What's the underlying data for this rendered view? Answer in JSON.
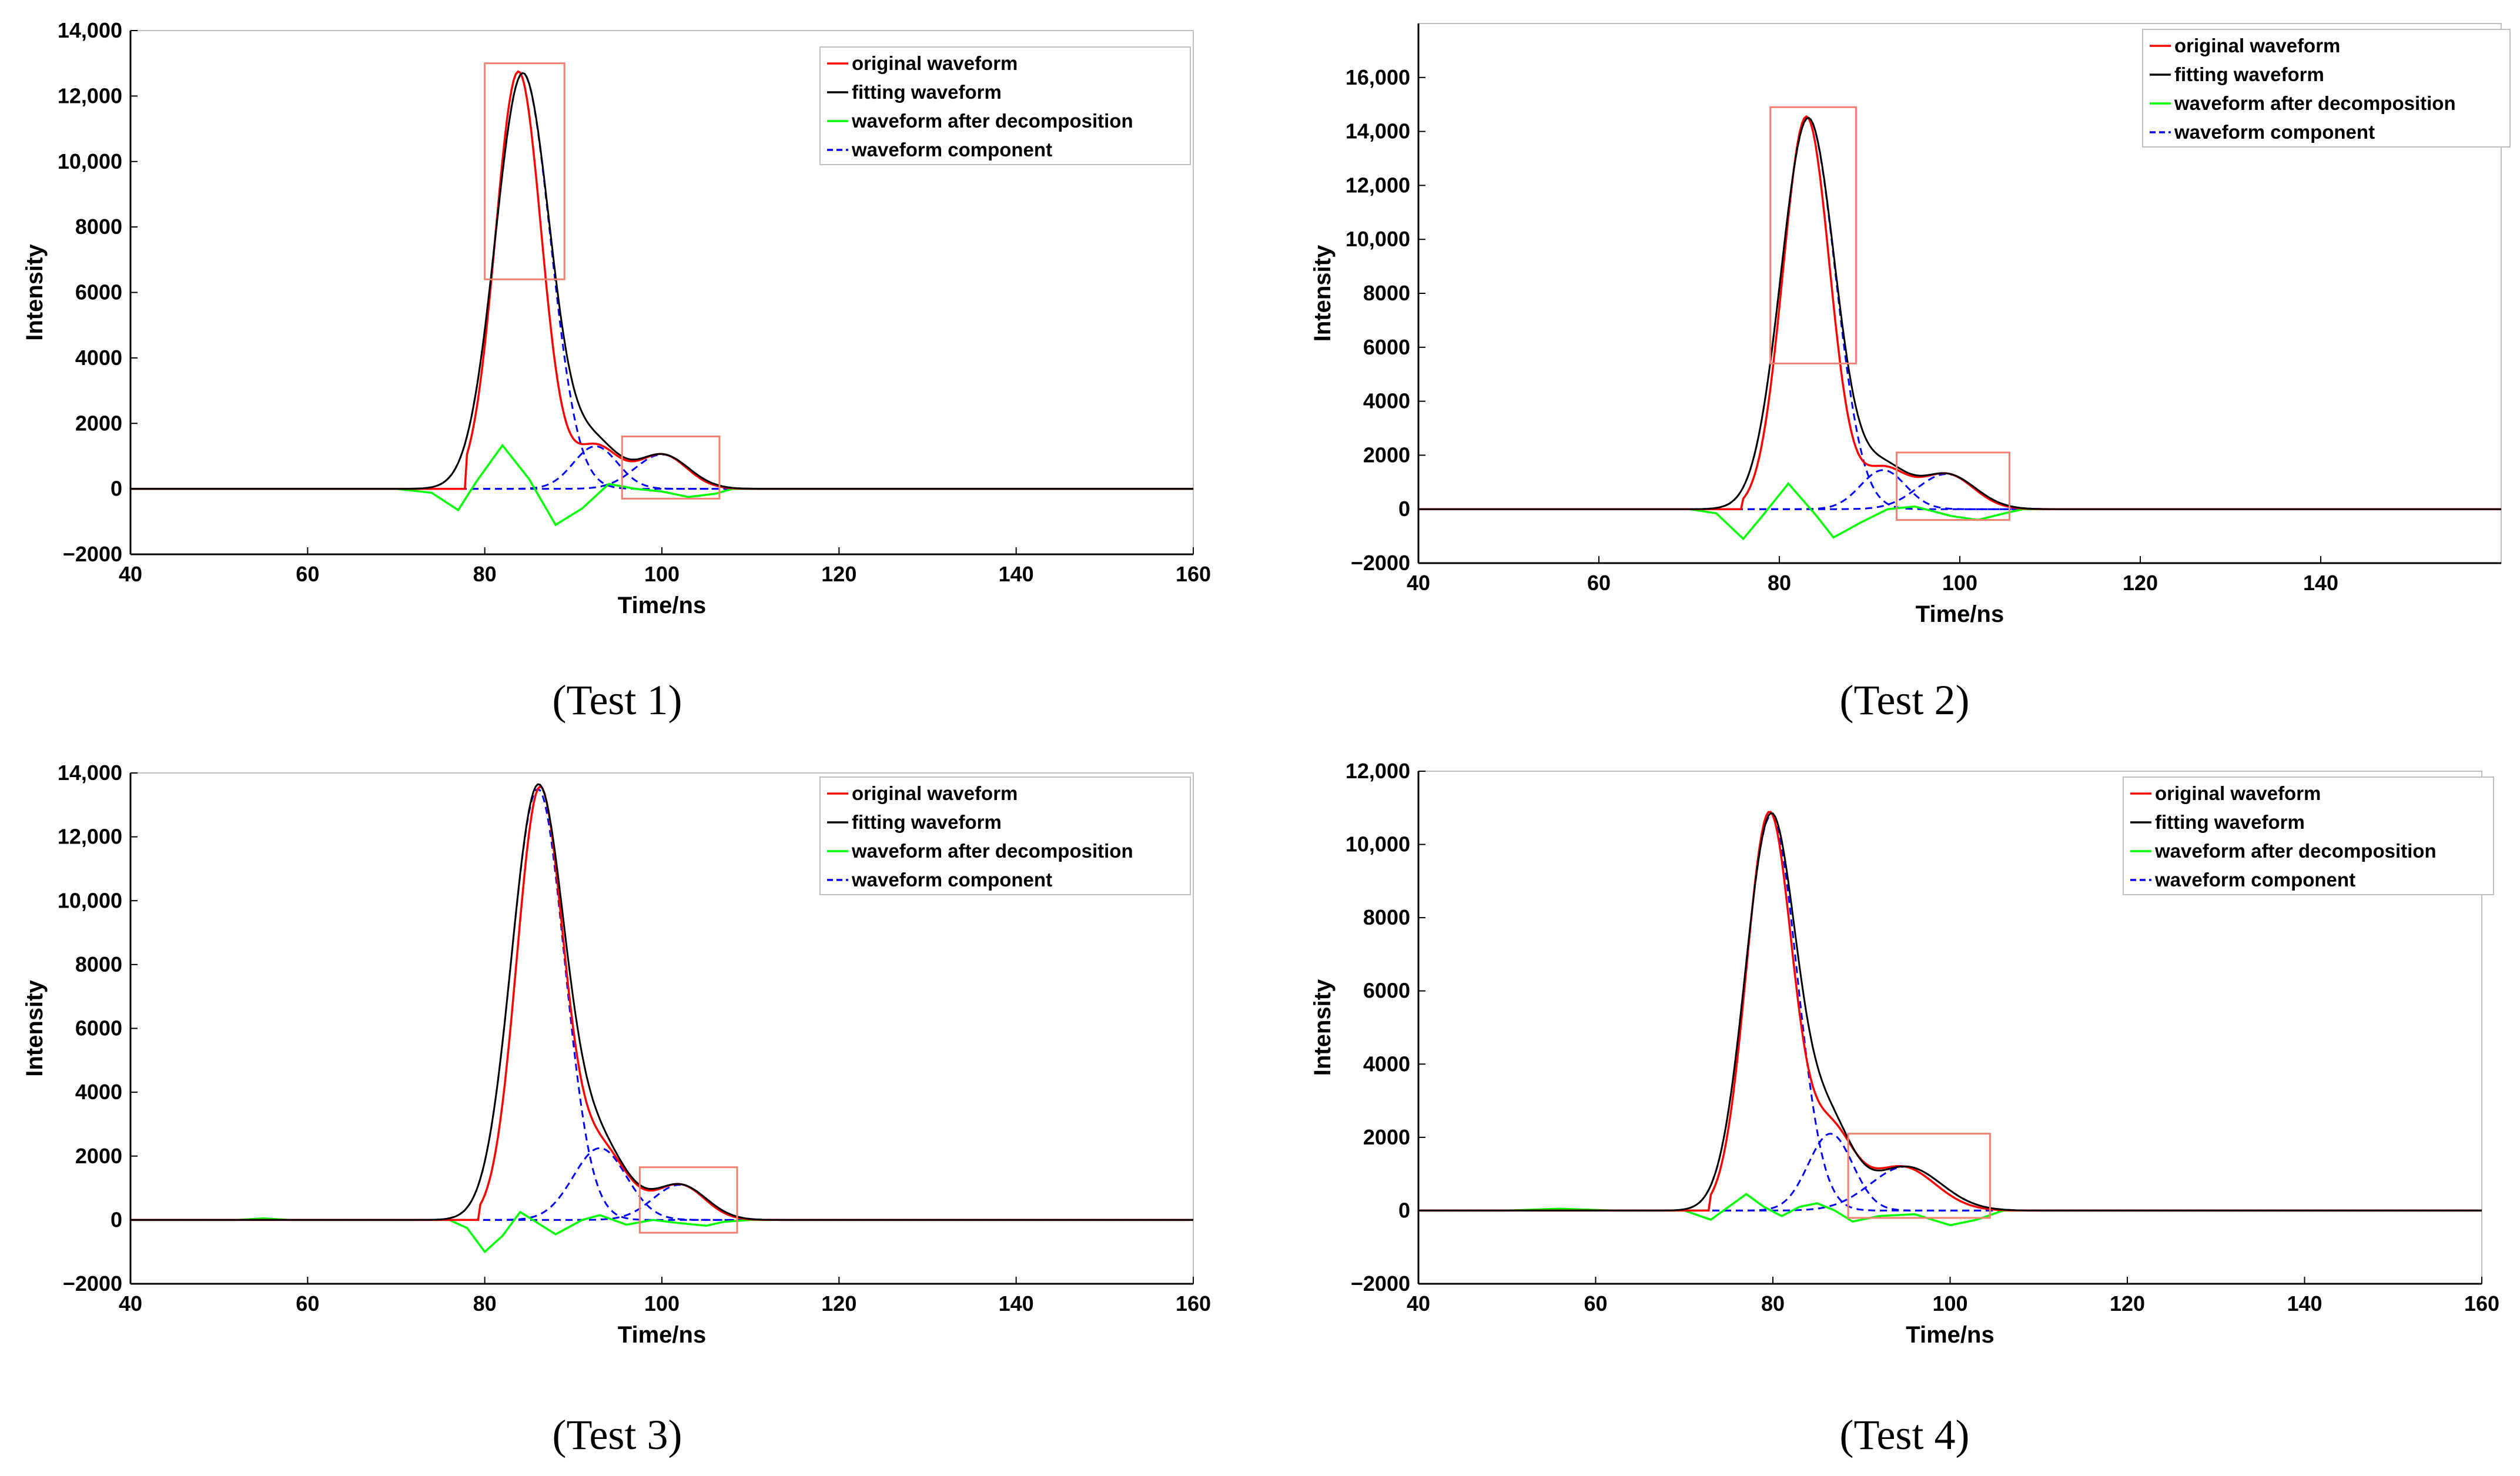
{
  "colors": {
    "original": "#ff0000",
    "fitting": "#000000",
    "decomposed": "#00ff00",
    "component": "#0000ff",
    "highlight": "#f08070"
  },
  "legend_labels": [
    "original waveform",
    "fitting waveform",
    "waveform after decomposition",
    "waveform component"
  ],
  "chart_data": [
    {
      "type": "line",
      "caption": "(Test 1)",
      "xlabel": "Time/ns",
      "ylabel": "Intensity",
      "xlim": [
        40,
        160
      ],
      "ylim": [
        -2000,
        14000
      ],
      "xticks": [
        40,
        60,
        80,
        100,
        120,
        140,
        160
      ],
      "xtick_labels": [
        "40",
        "60",
        "80",
        "100",
        "120",
        "140",
        "160"
      ],
      "yticks": [
        -2000,
        0,
        2000,
        4000,
        6000,
        8000,
        10000,
        12000,
        14000
      ],
      "ytick_labels": [
        "−2000",
        "0",
        "2000",
        "4000",
        "6000",
        "8000",
        "10,000",
        "12,000",
        "14,000"
      ],
      "legend_position": "top-right",
      "components": [
        [
          12700,
          84.3,
          3.1
        ],
        [
          1300,
          92.5,
          2.5
        ],
        [
          1050,
          100.0,
          3.0
        ]
      ],
      "original_components": [
        [
          12750,
          83.8,
          2.6
        ],
        [
          1300,
          92.5,
          2.5
        ],
        [
          1050,
          100.0,
          2.8
        ]
      ],
      "original_onset": 78,
      "decomposed_points": [
        [
          40,
          0
        ],
        [
          70,
          0
        ],
        [
          74,
          -120
        ],
        [
          77,
          -650
        ],
        [
          79,
          200
        ],
        [
          82,
          1330
        ],
        [
          85,
          300
        ],
        [
          88,
          -1100
        ],
        [
          91,
          -600
        ],
        [
          94,
          150
        ],
        [
          97,
          0
        ],
        [
          100,
          -80
        ],
        [
          103,
          -250
        ],
        [
          106,
          -150
        ],
        [
          108,
          0
        ],
        [
          160,
          0
        ]
      ],
      "highlight_boxes": [
        {
          "x": [
            80,
            89
          ],
          "y": [
            6400,
            13000
          ]
        },
        {
          "x": [
            95.5,
            106.5
          ],
          "y": [
            -300,
            1600
          ]
        }
      ]
    },
    {
      "type": "line",
      "caption": "(Test 2)",
      "xlabel": "Time/ns",
      "ylabel": "Intensity",
      "xlim": [
        40,
        160
      ],
      "ylim": [
        -2000,
        18000
      ],
      "xticks": [
        40,
        60,
        80,
        100,
        120,
        140
      ],
      "xtick_labels": [
        "40",
        "60",
        "80",
        "100",
        "120",
        "140"
      ],
      "yticks": [
        -2000,
        0,
        2000,
        4000,
        6000,
        8000,
        10000,
        12000,
        14000,
        16000
      ],
      "ytick_labels": [
        "−2000",
        "0",
        "2000",
        "4000",
        "6000",
        "8000",
        "10,000",
        "12,000",
        "14,000",
        "16,000"
      ],
      "legend_position": "top-right",
      "components": [
        [
          14500,
          83.2,
          3.0
        ],
        [
          1450,
          91.5,
          2.5
        ],
        [
          1300,
          98.5,
          3.2
        ]
      ],
      "original_components": [
        [
          14550,
          83.0,
          2.6
        ],
        [
          1450,
          91.5,
          2.5
        ],
        [
          1300,
          98.5,
          3.0
        ]
      ],
      "original_onset": 76,
      "decomposed_points": [
        [
          40,
          0
        ],
        [
          70,
          0
        ],
        [
          73,
          -150
        ],
        [
          76,
          -1100
        ],
        [
          78,
          -300
        ],
        [
          81,
          950
        ],
        [
          84,
          -200
        ],
        [
          86,
          -1050
        ],
        [
          89,
          -500
        ],
        [
          92,
          0
        ],
        [
          95,
          100
        ],
        [
          99,
          -250
        ],
        [
          102,
          -400
        ],
        [
          105,
          -150
        ],
        [
          107,
          0
        ],
        [
          160,
          0
        ]
      ],
      "highlight_boxes": [
        {
          "x": [
            79,
            88.5
          ],
          "y": [
            5400,
            14900
          ]
        },
        {
          "x": [
            93,
            105.5
          ],
          "y": [
            -400,
            2100
          ]
        }
      ]
    },
    {
      "type": "line",
      "caption": "(Test 3)",
      "xlabel": "Time/ns",
      "ylabel": "Intensity",
      "xlim": [
        40,
        160
      ],
      "ylim": [
        -2000,
        14000
      ],
      "xticks": [
        40,
        60,
        80,
        100,
        120,
        140,
        160
      ],
      "xtick_labels": [
        "40",
        "60",
        "80",
        "100",
        "120",
        "140",
        "160"
      ],
      "yticks": [
        -2000,
        0,
        2000,
        4000,
        6000,
        8000,
        10000,
        12000,
        14000
      ],
      "ytick_labels": [
        "−2000",
        "0",
        "2000",
        "4000",
        "6000",
        "8000",
        "10,000",
        "12,000",
        "14,000"
      ],
      "legend_position": "top-right",
      "components": [
        [
          13500,
          86.0,
          3.0
        ],
        [
          2250,
          93.0,
          3.0
        ],
        [
          1100,
          102.0,
          3.0
        ]
      ],
      "original_components": [
        [
          13400,
          86.2,
          2.6
        ],
        [
          2250,
          93.0,
          3.0
        ],
        [
          1100,
          102.0,
          2.8
        ]
      ],
      "original_onset": 79.5,
      "decomposed_points": [
        [
          40,
          0
        ],
        [
          52,
          0
        ],
        [
          55,
          50
        ],
        [
          58,
          0
        ],
        [
          76,
          0
        ],
        [
          78,
          -250
        ],
        [
          80,
          -1000
        ],
        [
          82,
          -500
        ],
        [
          84,
          250
        ],
        [
          86,
          -100
        ],
        [
          88,
          -450
        ],
        [
          91,
          0
        ],
        [
          93,
          150
        ],
        [
          96,
          -150
        ],
        [
          99,
          0
        ],
        [
          102,
          -100
        ],
        [
          105,
          -180
        ],
        [
          107,
          -60
        ],
        [
          110,
          0
        ],
        [
          160,
          0
        ]
      ],
      "highlight_boxes": [
        {
          "x": [
            97.5,
            108.5
          ],
          "y": [
            -400,
            1650
          ]
        }
      ]
    },
    {
      "type": "line",
      "caption": "(Test 4)",
      "xlabel": "Time/ns",
      "ylabel": "Intensity",
      "xlim": [
        40,
        160
      ],
      "ylim": [
        -2000,
        12000
      ],
      "xticks": [
        40,
        60,
        80,
        100,
        120,
        140,
        160
      ],
      "xtick_labels": [
        "40",
        "60",
        "80",
        "100",
        "120",
        "140",
        "160"
      ],
      "yticks": [
        -2000,
        0,
        2000,
        4000,
        6000,
        8000,
        10000,
        12000
      ],
      "ytick_labels": [
        "−2000",
        "0",
        "2000",
        "4000",
        "6000",
        "8000",
        "10,000",
        "12,000"
      ],
      "legend_position": "top-right",
      "components": [
        [
          10800,
          79.8,
          2.9
        ],
        [
          2100,
          86.5,
          2.5
        ],
        [
          1200,
          95.0,
          4.0
        ]
      ],
      "original_components": [
        [
          10850,
          79.6,
          2.6
        ],
        [
          2100,
          86.5,
          2.5
        ],
        [
          1200,
          94.5,
          3.8
        ]
      ],
      "original_onset": 73,
      "decomposed_points": [
        [
          40,
          0
        ],
        [
          50,
          0
        ],
        [
          56,
          50
        ],
        [
          62,
          0
        ],
        [
          70,
          0
        ],
        [
          73,
          -250
        ],
        [
          75,
          100
        ],
        [
          77,
          450
        ],
        [
          79,
          100
        ],
        [
          81,
          -150
        ],
        [
          83,
          100
        ],
        [
          85,
          200
        ],
        [
          87,
          0
        ],
        [
          89,
          -300
        ],
        [
          92,
          -150
        ],
        [
          96,
          -100
        ],
        [
          100,
          -400
        ],
        [
          103,
          -250
        ],
        [
          106,
          0
        ],
        [
          160,
          0
        ]
      ],
      "highlight_boxes": [
        {
          "x": [
            88.5,
            104.5
          ],
          "y": [
            -200,
            2100
          ]
        }
      ]
    }
  ]
}
